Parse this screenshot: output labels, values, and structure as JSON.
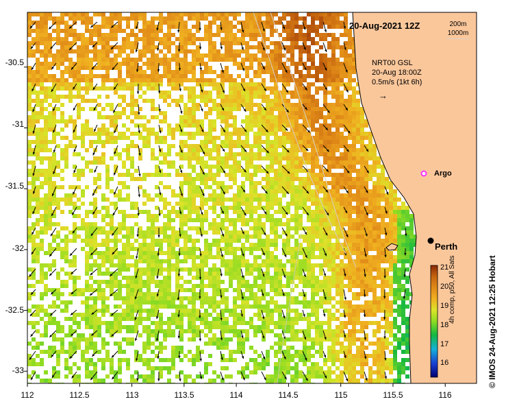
{
  "map": {
    "date_label": "20-Aug-2021 12Z",
    "depth_contours": [
      "200m",
      "1000m"
    ],
    "current_legend": {
      "line1": "NRT00 GSL",
      "line2": "20-Aug 18:00Z",
      "line3": "0.5m/s (1kt 6h)",
      "arrow": "→"
    },
    "places": {
      "argo": "Argo",
      "perth": "Perth"
    },
    "credit": "© IMOS 24-Aug-2021 12:25 Hobart",
    "colorbar": {
      "title": "4h comp, p50, All Sats",
      "ticks": [
        "21",
        "20",
        "19",
        "18",
        "17",
        "16"
      ],
      "min": 15.5,
      "max": 21
    },
    "x_axis": {
      "ticks": [
        "112",
        "112.5",
        "113",
        "113.5",
        "114",
        "114.5",
        "115",
        "115.5",
        "116"
      ],
      "range": [
        112,
        116.3
      ]
    },
    "y_axis": {
      "ticks": [
        "-30.5",
        "-31",
        "-31.5",
        "-32",
        "-32.5",
        "-33"
      ],
      "range": [
        -33.1,
        -30.05
      ]
    },
    "colors": {
      "land": "#fac79b",
      "coast": "#000000",
      "cloud": "#ffffff"
    }
  }
}
